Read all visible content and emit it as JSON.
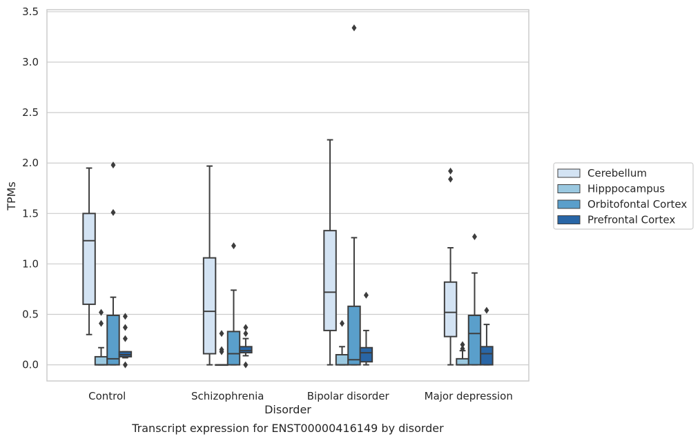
{
  "chart_data": {
    "type": "box",
    "title": "Transcript expression for ENST00000416149 by disorder",
    "xlabel": "Disorder",
    "ylabel": "TPMs",
    "ylim": [
      -0.16,
      3.52
    ],
    "yticks": [
      0.0,
      0.5,
      1.0,
      1.5,
      2.0,
      2.5,
      3.0,
      3.5
    ],
    "ytick_labels": [
      "0.0",
      "0.5",
      "1.0",
      "1.5",
      "2.0",
      "2.5",
      "3.0",
      "3.5"
    ],
    "grid": true,
    "legend_position": "right",
    "categories": [
      "Control",
      "Schizophrenia",
      "Bipolar disorder",
      "Major depression"
    ],
    "series": [
      {
        "name": "Cerebellum",
        "color": "#d3e3f3",
        "boxes": [
          {
            "q1": 0.6,
            "median": 1.23,
            "q3": 1.5,
            "whisker_low": 0.3,
            "whisker_high": 1.95,
            "outliers": []
          },
          {
            "q1": 0.11,
            "median": 0.53,
            "q3": 1.06,
            "whisker_low": 0.0,
            "whisker_high": 1.97,
            "outliers": []
          },
          {
            "q1": 0.34,
            "median": 0.72,
            "q3": 1.33,
            "whisker_low": 0.0,
            "whisker_high": 2.23,
            "outliers": []
          },
          {
            "q1": 0.28,
            "median": 0.52,
            "q3": 0.82,
            "whisker_low": 0.0,
            "whisker_high": 1.16,
            "outliers": [
              1.84,
              1.92
            ]
          }
        ]
      },
      {
        "name": "Hipppocampus",
        "color": "#9ac8e0",
        "boxes": [
          {
            "q1": 0.0,
            "median": 0.0,
            "q3": 0.08,
            "whisker_low": 0.0,
            "whisker_high": 0.17,
            "outliers": [
              0.41,
              0.52
            ]
          },
          {
            "q1": 0.0,
            "median": 0.0,
            "q3": 0.0,
            "whisker_low": 0.0,
            "whisker_high": 0.0,
            "outliers": [
              0.13,
              0.15,
              0.31
            ]
          },
          {
            "q1": 0.0,
            "median": 0.0,
            "q3": 0.1,
            "whisker_low": 0.0,
            "whisker_high": 0.18,
            "outliers": [
              0.41
            ]
          },
          {
            "q1": 0.0,
            "median": 0.0,
            "q3": 0.06,
            "whisker_low": 0.0,
            "whisker_high": 0.14,
            "outliers": [
              0.16,
              0.2
            ]
          }
        ]
      },
      {
        "name": "Orbitofontal Cortex",
        "color": "#5a9fcb",
        "boxes": [
          {
            "q1": 0.0,
            "median": 0.06,
            "q3": 0.49,
            "whisker_low": 0.0,
            "whisker_high": 0.67,
            "outliers": [
              1.51,
              1.98
            ]
          },
          {
            "q1": 0.0,
            "median": 0.11,
            "q3": 0.33,
            "whisker_low": 0.0,
            "whisker_high": 0.74,
            "outliers": [
              1.18
            ]
          },
          {
            "q1": 0.0,
            "median": 0.05,
            "q3": 0.58,
            "whisker_low": 0.0,
            "whisker_high": 1.26,
            "outliers": [
              3.34
            ]
          },
          {
            "q1": 0.0,
            "median": 0.31,
            "q3": 0.49,
            "whisker_low": 0.0,
            "whisker_high": 0.91,
            "outliers": [
              1.27
            ]
          }
        ]
      },
      {
        "name": "Prefrontal Cortex",
        "color": "#2966a6",
        "boxes": [
          {
            "q1": 0.08,
            "median": 0.1,
            "q3": 0.13,
            "whisker_low": 0.07,
            "whisker_high": 0.13,
            "outliers": [
              0.0,
              0.26,
              0.37,
              0.48
            ]
          },
          {
            "q1": 0.12,
            "median": 0.14,
            "q3": 0.18,
            "whisker_low": 0.09,
            "whisker_high": 0.26,
            "outliers": [
              0.0,
              0.31,
              0.37
            ]
          },
          {
            "q1": 0.03,
            "median": 0.12,
            "q3": 0.17,
            "whisker_low": 0.0,
            "whisker_high": 0.34,
            "outliers": [
              0.69
            ]
          },
          {
            "q1": 0.0,
            "median": 0.11,
            "q3": 0.18,
            "whisker_low": 0.0,
            "whisker_high": 0.4,
            "outliers": [
              0.54
            ]
          }
        ]
      }
    ]
  }
}
